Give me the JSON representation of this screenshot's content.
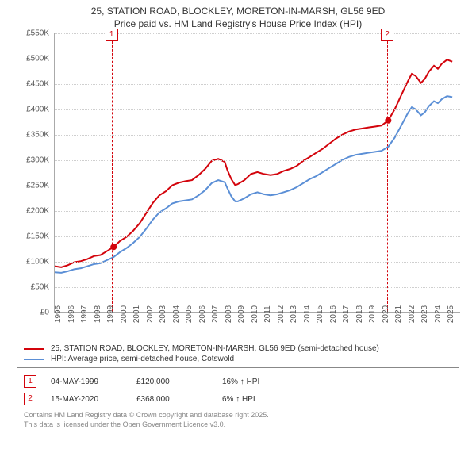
{
  "title_line1": "25, STATION ROAD, BLOCKLEY, MORETON-IN-MARSH, GL56 9ED",
  "title_line2": "Price paid vs. HM Land Registry's House Price Index (HPI)",
  "chart": {
    "type": "line",
    "background_color": "#ffffff",
    "grid_color": "#cfcfcf",
    "axis_color": "#aaaaaa",
    "x_years": [
      1995,
      1996,
      1997,
      1998,
      1999,
      2000,
      2001,
      2002,
      2003,
      2004,
      2005,
      2006,
      2007,
      2008,
      2009,
      2010,
      2011,
      2012,
      2013,
      2014,
      2015,
      2016,
      2017,
      2018,
      2019,
      2020,
      2021,
      2022,
      2023,
      2024,
      2025
    ],
    "xlim": [
      1995,
      2026
    ],
    "ylim": [
      0,
      550000
    ],
    "ytick_step": 50000,
    "ytick_labels": [
      "£0",
      "£50K",
      "£100K",
      "£150K",
      "£200K",
      "£250K",
      "£300K",
      "£350K",
      "£400K",
      "£450K",
      "£500K",
      "£550K"
    ],
    "label_fontsize": 10,
    "series": [
      {
        "name": "red",
        "label": "25, STATION ROAD, BLOCKLEY, MORETON-IN-MARSH, GL56 9ED (semi-detached house)",
        "color": "#d3040c",
        "line_width": 2,
        "data": [
          [
            1995,
            90000
          ],
          [
            1995.5,
            88000
          ],
          [
            1996,
            92000
          ],
          [
            1996.5,
            98000
          ],
          [
            1997,
            100000
          ],
          [
            1997.5,
            104000
          ],
          [
            1998,
            110000
          ],
          [
            1998.5,
            112000
          ],
          [
            1999,
            120000
          ],
          [
            1999.5,
            128000
          ],
          [
            2000,
            140000
          ],
          [
            2000.5,
            148000
          ],
          [
            2001,
            160000
          ],
          [
            2001.5,
            175000
          ],
          [
            2002,
            195000
          ],
          [
            2002.5,
            215000
          ],
          [
            2003,
            230000
          ],
          [
            2003.5,
            238000
          ],
          [
            2004,
            250000
          ],
          [
            2004.5,
            255000
          ],
          [
            2005,
            258000
          ],
          [
            2005.5,
            260000
          ],
          [
            2006,
            270000
          ],
          [
            2006.5,
            282000
          ],
          [
            2007,
            298000
          ],
          [
            2007.5,
            302000
          ],
          [
            2008,
            296000
          ],
          [
            2008.2,
            280000
          ],
          [
            2008.5,
            262000
          ],
          [
            2008.8,
            250000
          ],
          [
            2009,
            252000
          ],
          [
            2009.5,
            260000
          ],
          [
            2010,
            272000
          ],
          [
            2010.5,
            276000
          ],
          [
            2011,
            272000
          ],
          [
            2011.5,
            270000
          ],
          [
            2012,
            272000
          ],
          [
            2012.5,
            278000
          ],
          [
            2013,
            282000
          ],
          [
            2013.5,
            288000
          ],
          [
            2014,
            298000
          ],
          [
            2014.5,
            306000
          ],
          [
            2015,
            314000
          ],
          [
            2015.5,
            322000
          ],
          [
            2016,
            332000
          ],
          [
            2016.5,
            342000
          ],
          [
            2017,
            350000
          ],
          [
            2017.5,
            356000
          ],
          [
            2018,
            360000
          ],
          [
            2018.5,
            362000
          ],
          [
            2019,
            364000
          ],
          [
            2019.5,
            366000
          ],
          [
            2020,
            368000
          ],
          [
            2020.5,
            378000
          ],
          [
            2021,
            400000
          ],
          [
            2021.5,
            428000
          ],
          [
            2022,
            455000
          ],
          [
            2022.3,
            470000
          ],
          [
            2022.6,
            466000
          ],
          [
            2023,
            452000
          ],
          [
            2023.3,
            460000
          ],
          [
            2023.6,
            474000
          ],
          [
            2024,
            486000
          ],
          [
            2024.3,
            480000
          ],
          [
            2024.6,
            490000
          ],
          [
            2025,
            498000
          ],
          [
            2025.4,
            494000
          ]
        ]
      },
      {
        "name": "blue",
        "label": "HPI: Average price, semi-detached house, Cotswold",
        "color": "#5b8fd6",
        "line_width": 2,
        "data": [
          [
            1995,
            78000
          ],
          [
            1995.5,
            77000
          ],
          [
            1996,
            80000
          ],
          [
            1996.5,
            84000
          ],
          [
            1997,
            86000
          ],
          [
            1997.5,
            90000
          ],
          [
            1998,
            94000
          ],
          [
            1998.5,
            96000
          ],
          [
            1999,
            102000
          ],
          [
            1999.5,
            108000
          ],
          [
            2000,
            118000
          ],
          [
            2000.5,
            126000
          ],
          [
            2001,
            136000
          ],
          [
            2001.5,
            148000
          ],
          [
            2002,
            164000
          ],
          [
            2002.5,
            182000
          ],
          [
            2003,
            196000
          ],
          [
            2003.5,
            204000
          ],
          [
            2004,
            214000
          ],
          [
            2004.5,
            218000
          ],
          [
            2005,
            220000
          ],
          [
            2005.5,
            222000
          ],
          [
            2006,
            230000
          ],
          [
            2006.5,
            240000
          ],
          [
            2007,
            254000
          ],
          [
            2007.5,
            260000
          ],
          [
            2008,
            256000
          ],
          [
            2008.2,
            244000
          ],
          [
            2008.5,
            228000
          ],
          [
            2008.8,
            218000
          ],
          [
            2009,
            218000
          ],
          [
            2009.5,
            224000
          ],
          [
            2010,
            232000
          ],
          [
            2010.5,
            236000
          ],
          [
            2011,
            232000
          ],
          [
            2011.5,
            230000
          ],
          [
            2012,
            232000
          ],
          [
            2012.5,
            236000
          ],
          [
            2013,
            240000
          ],
          [
            2013.5,
            246000
          ],
          [
            2014,
            254000
          ],
          [
            2014.5,
            262000
          ],
          [
            2015,
            268000
          ],
          [
            2015.5,
            276000
          ],
          [
            2016,
            284000
          ],
          [
            2016.5,
            292000
          ],
          [
            2017,
            300000
          ],
          [
            2017.5,
            306000
          ],
          [
            2018,
            310000
          ],
          [
            2018.5,
            312000
          ],
          [
            2019,
            314000
          ],
          [
            2019.5,
            316000
          ],
          [
            2020,
            318000
          ],
          [
            2020.5,
            326000
          ],
          [
            2021,
            344000
          ],
          [
            2021.5,
            368000
          ],
          [
            2022,
            392000
          ],
          [
            2022.3,
            404000
          ],
          [
            2022.6,
            400000
          ],
          [
            2023,
            388000
          ],
          [
            2023.3,
            394000
          ],
          [
            2023.6,
            406000
          ],
          [
            2024,
            416000
          ],
          [
            2024.3,
            412000
          ],
          [
            2024.6,
            420000
          ],
          [
            2025,
            426000
          ],
          [
            2025.4,
            424000
          ]
        ]
      }
    ],
    "markers": [
      {
        "n": "1",
        "year": 1999.34,
        "color": "#d3040c"
      },
      {
        "n": "2",
        "year": 2020.37,
        "color": "#d3040c"
      }
    ]
  },
  "legend": {
    "border_color": "#888888"
  },
  "events": [
    {
      "n": "1",
      "color": "#d3040c",
      "date": "04-MAY-1999",
      "price": "£120,000",
      "delta": "16% ↑ HPI"
    },
    {
      "n": "2",
      "color": "#d3040c",
      "date": "15-MAY-2020",
      "price": "£368,000",
      "delta": "6% ↑ HPI"
    }
  ],
  "footer_line1": "Contains HM Land Registry data © Crown copyright and database right 2025.",
  "footer_line2": "This data is licensed under the Open Government Licence v3.0."
}
